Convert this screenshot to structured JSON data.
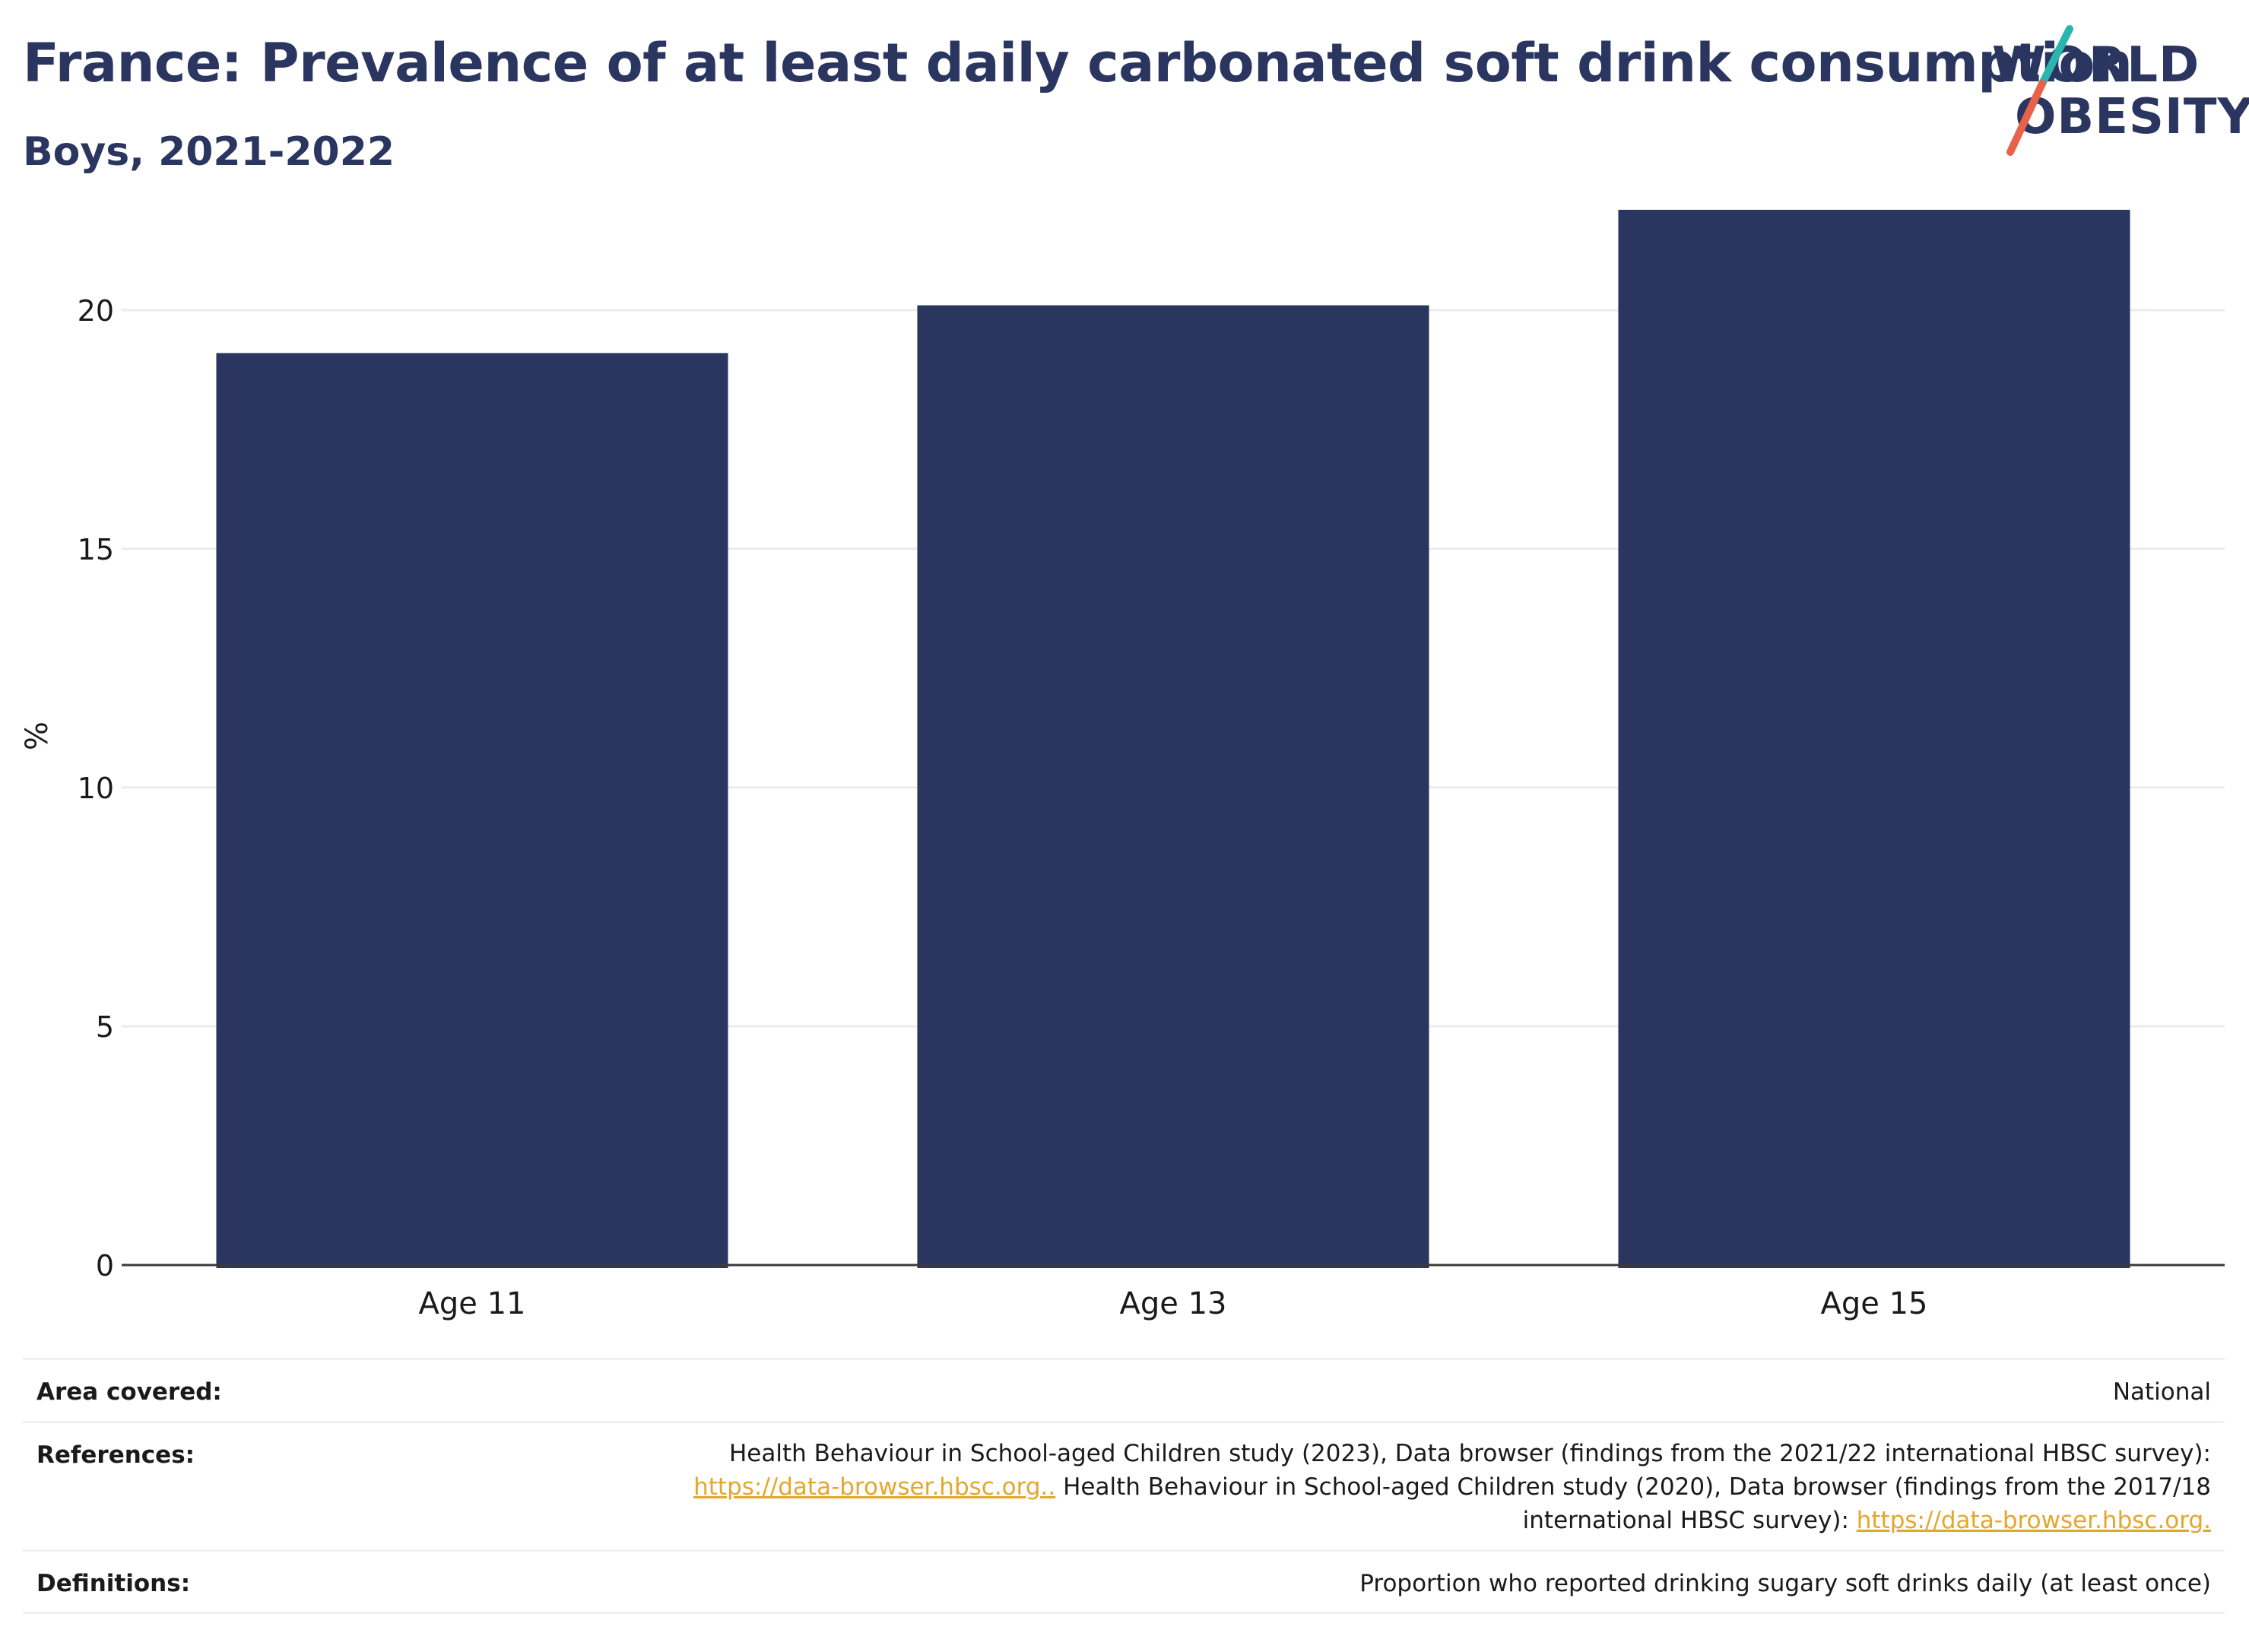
{
  "header": {
    "title": "France: Prevalence of at least daily carbonated soft drink consumption",
    "subtitle": "Boys, 2021-2022"
  },
  "logo": {
    "line1": "WORLD",
    "line2": "OBESITY",
    "accent_colors": [
      "#2bb5b0",
      "#e8614b"
    ]
  },
  "chart_data": {
    "type": "bar",
    "categories": [
      "Age 11",
      "Age 13",
      "Age 15"
    ],
    "values": [
      19.1,
      20.1,
      22.1
    ],
    "title": "",
    "xlabel": "",
    "ylabel": "%",
    "ylim": [
      0,
      22.8
    ],
    "yticks": [
      0,
      5,
      10,
      15,
      20
    ],
    "grid": true,
    "bar_color": "#2a3560"
  },
  "info": {
    "area_label": "Area covered:",
    "area_value": "National",
    "references_label": "References:",
    "references_text_1": "Health Behaviour in School-aged Children study (2023), Data browser (findings from the 2021/22 international HBSC survey):",
    "references_link_1": "https://data-browser.hbsc.org..",
    "references_text_2": " Health Behaviour in School-aged Children study (2020), Data browser (findings from the 2017/18",
    "references_text_3": "international HBSC survey): ",
    "references_link_2": "https://data-browser.hbsc.org.",
    "definitions_label": "Definitions:",
    "definitions_value": "Proportion who reported drinking sugary soft drinks daily (at least once)"
  }
}
